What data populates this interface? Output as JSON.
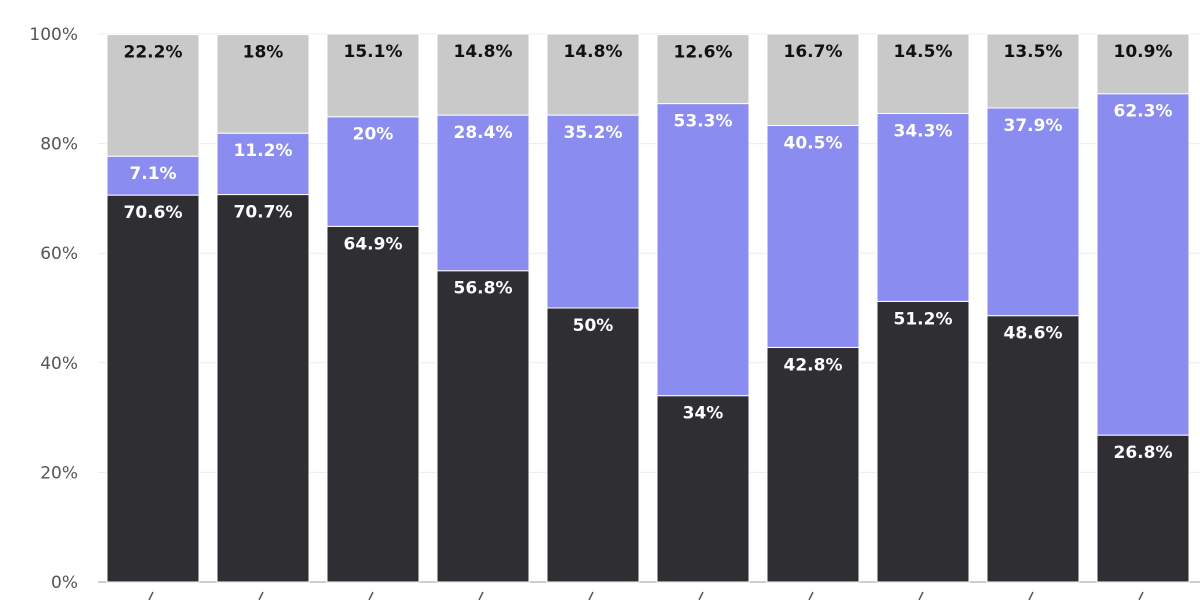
{
  "chart_data": {
    "type": "bar",
    "stacked": true,
    "ylim": [
      0,
      100
    ],
    "y_ticks": [
      0,
      20,
      40,
      60,
      80,
      100
    ],
    "y_tick_labels": [
      "0%",
      "20%",
      "40%",
      "60%",
      "80%",
      "100%"
    ],
    "grid": true,
    "bar_count": 10,
    "series": [
      {
        "values": [
          70.6,
          70.7,
          64.9,
          56.8,
          50,
          34,
          42.8,
          51.2,
          48.6,
          26.8
        ],
        "labels": [
          "70.6%",
          "70.7%",
          "64.9%",
          "56.8%",
          "50%",
          "34%",
          "42.8%",
          "51.2%",
          "48.6%",
          "26.8%"
        ],
        "color": "#2e2e33",
        "label_color": "#ffffff"
      },
      {
        "values": [
          7.1,
          11.2,
          20,
          28.4,
          35.2,
          53.3,
          40.5,
          34.3,
          37.9,
          62.3
        ],
        "labels": [
          "7.1%",
          "11.2%",
          "20%",
          "28.4%",
          "35.2%",
          "53.3%",
          "40.5%",
          "34.3%",
          "37.9%",
          "62.3%"
        ],
        "color": "#8a8cf0",
        "label_color": "#ffffff"
      },
      {
        "values": [
          22.2,
          18,
          15.1,
          14.8,
          14.8,
          12.6,
          16.7,
          14.5,
          13.5,
          10.9
        ],
        "labels": [
          "22.2%",
          "18%",
          "15.1%",
          "14.8%",
          "14.8%",
          "12.6%",
          "16.7%",
          "14.5%",
          "13.5%",
          "10.9%"
        ],
        "color": "#c9c9c9",
        "label_color": "#111111"
      }
    ]
  }
}
